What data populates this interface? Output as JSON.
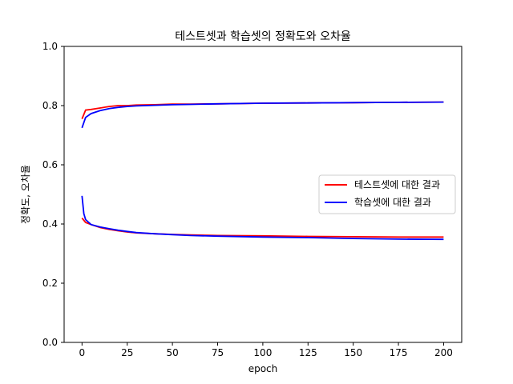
{
  "chart_data": {
    "type": "line",
    "title": "테스트셋과 학습셋의 정확도와 오차율",
    "xlabel": "epoch",
    "ylabel": "정확도, 오차율",
    "xlim": [
      -9.9,
      210
    ],
    "ylim": [
      0.0,
      1.0
    ],
    "xticks": [
      0,
      25,
      50,
      75,
      100,
      125,
      150,
      175,
      200
    ],
    "yticks": [
      0.0,
      0.2,
      0.4,
      0.6,
      0.8,
      1.0
    ],
    "xtick_labels": [
      "0",
      "25",
      "50",
      "75",
      "100",
      "125",
      "150",
      "175",
      "200"
    ],
    "ytick_labels": [
      "0.0",
      "0.2",
      "0.4",
      "0.6",
      "0.8",
      "1.0"
    ],
    "grid": false,
    "legend": {
      "placement": "center-right",
      "entries": [
        "테스트셋에 대한 결과",
        "학습셋에 대한 결과"
      ]
    },
    "series": [
      {
        "name": "테스트셋에 대한 결과",
        "color": "#ff0000",
        "lines": [
          {
            "metric": "accuracy",
            "x": [
              0,
              2,
              5,
              10,
              15,
              20,
              25,
              30,
              40,
              50,
              60,
              75,
              100,
              125,
              150,
              175,
              200
            ],
            "y": [
              0.755,
              0.785,
              0.787,
              0.792,
              0.797,
              0.8,
              0.8,
              0.802,
              0.803,
              0.805,
              0.805,
              0.806,
              0.808,
              0.809,
              0.81,
              0.811,
              0.812
            ]
          },
          {
            "metric": "loss",
            "x": [
              0,
              2,
              5,
              10,
              15,
              20,
              25,
              30,
              40,
              50,
              60,
              75,
              100,
              125,
              150,
              175,
              200
            ],
            "y": [
              0.42,
              0.405,
              0.398,
              0.388,
              0.382,
              0.377,
              0.373,
              0.37,
              0.367,
              0.365,
              0.363,
              0.361,
              0.36,
              0.358,
              0.357,
              0.356,
              0.356
            ]
          }
        ]
      },
      {
        "name": "학습셋에 대한 결과",
        "color": "#0000ff",
        "lines": [
          {
            "metric": "accuracy",
            "x": [
              0,
              2,
              5,
              10,
              15,
              20,
              25,
              30,
              40,
              50,
              60,
              75,
              100,
              125,
              150,
              175,
              200
            ],
            "y": [
              0.725,
              0.76,
              0.773,
              0.783,
              0.79,
              0.794,
              0.797,
              0.799,
              0.801,
              0.803,
              0.804,
              0.806,
              0.808,
              0.809,
              0.81,
              0.811,
              0.812
            ]
          },
          {
            "metric": "loss",
            "x": [
              0,
              1,
              2,
              5,
              10,
              15,
              20,
              25,
              30,
              40,
              50,
              60,
              75,
              100,
              125,
              150,
              175,
              200
            ],
            "y": [
              0.495,
              0.435,
              0.415,
              0.398,
              0.39,
              0.384,
              0.379,
              0.375,
              0.371,
              0.367,
              0.364,
              0.361,
              0.359,
              0.356,
              0.354,
              0.351,
              0.349,
              0.348
            ]
          }
        ]
      }
    ]
  }
}
